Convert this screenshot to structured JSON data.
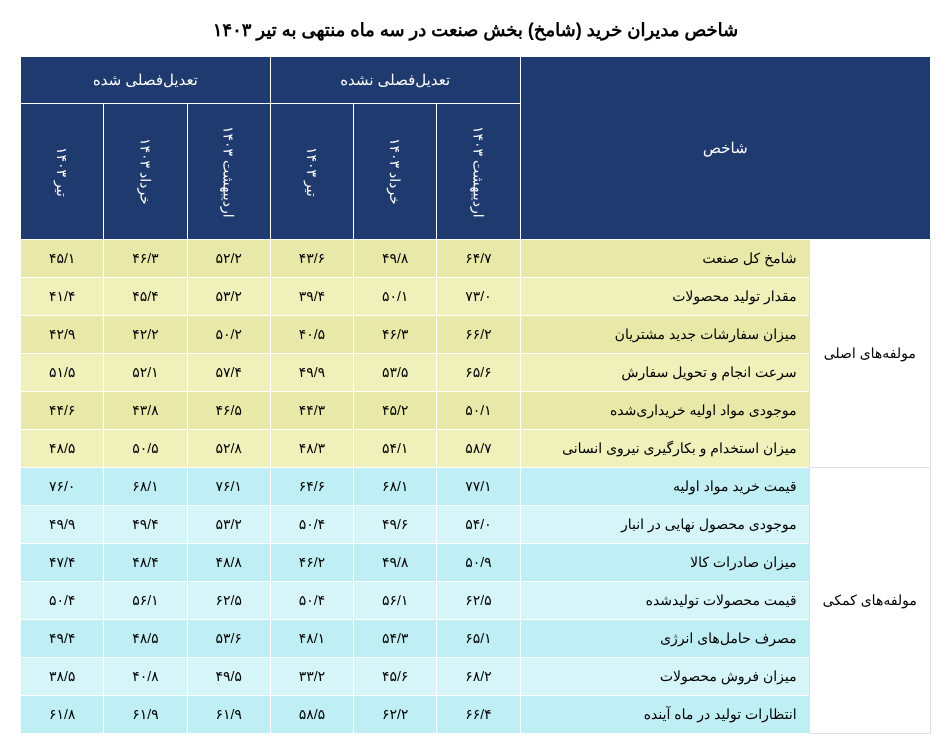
{
  "title": "شاخص مدیران خرید (شامخ) بخش صنعت در سه ماه منتهی به تیر ۱۴۰۳",
  "header": {
    "indicator_label": "شاخص",
    "group_unadjusted": "تعدیل‌فصلی نشده",
    "group_adjusted": "تعدیل‌فصلی شده",
    "months": {
      "m1": "اردیبهشت ۱۴۰۳",
      "m2": "خرداد ۱۴۰۳",
      "m3": "تیر ۱۴۰۳"
    }
  },
  "sections": {
    "main_label": "مولفه‌های اصلی",
    "aux_label": "مولفه‌های کمکی"
  },
  "rows": {
    "r0": {
      "name": "شامخ کل صنعت",
      "u1": "۶۴/۷",
      "u2": "۴۹/۸",
      "u3": "۴۳/۶",
      "a1": "۵۲/۲",
      "a2": "۴۶/۳",
      "a3": "۴۵/۱"
    },
    "r1": {
      "name": "مقدار تولید محصولات",
      "u1": "۷۳/۰",
      "u2": "۵۰/۱",
      "u3": "۳۹/۴",
      "a1": "۵۳/۲",
      "a2": "۴۵/۴",
      "a3": "۴۱/۴"
    },
    "r2": {
      "name": "میزان سفارشات جدید مشتریان",
      "u1": "۶۶/۲",
      "u2": "۴۶/۳",
      "u3": "۴۰/۵",
      "a1": "۵۰/۲",
      "a2": "۴۲/۲",
      "a3": "۴۲/۹"
    },
    "r3": {
      "name": "سرعت انجام و تحویل سفارش",
      "u1": "۶۵/۶",
      "u2": "۵۳/۵",
      "u3": "۴۹/۹",
      "a1": "۵۷/۴",
      "a2": "۵۲/۱",
      "a3": "۵۱/۵"
    },
    "r4": {
      "name": "موجودی مواد اولیه خریداری‌شده",
      "u1": "۵۰/۱",
      "u2": "۴۵/۲",
      "u3": "۴۴/۳",
      "a1": "۴۶/۵",
      "a2": "۴۳/۸",
      "a3": "۴۴/۶"
    },
    "r5": {
      "name": "میزان استخدام و بکارگیری نیروی انسانی",
      "u1": "۵۸/۷",
      "u2": "۵۴/۱",
      "u3": "۴۸/۳",
      "a1": "۵۲/۸",
      "a2": "۵۰/۵",
      "a3": "۴۸/۵"
    },
    "r6": {
      "name": "قیمت خرید مواد اولیه",
      "u1": "۷۷/۱",
      "u2": "۶۸/۱",
      "u3": "۶۴/۶",
      "a1": "۷۶/۱",
      "a2": "۶۸/۱",
      "a3": "۷۶/۰"
    },
    "r7": {
      "name": "موجودی محصول نهایی در انبار",
      "u1": "۵۴/۰",
      "u2": "۴۹/۶",
      "u3": "۵۰/۴",
      "a1": "۵۳/۲",
      "a2": "۴۹/۴",
      "a3": "۴۹/۹"
    },
    "r8": {
      "name": "میزان صادرات کالا",
      "u1": "۵۰/۹",
      "u2": "۴۹/۸",
      "u3": "۴۶/۲",
      "a1": "۴۸/۸",
      "a2": "۴۸/۴",
      "a3": "۴۷/۴"
    },
    "r9": {
      "name": "قیمت محصولات تولیدشده",
      "u1": "۶۲/۵",
      "u2": "۵۶/۱",
      "u3": "۵۰/۴",
      "a1": "۶۲/۵",
      "a2": "۵۶/۱",
      "a3": "۵۰/۴"
    },
    "r10": {
      "name": "مصرف حامل‌های انرژی",
      "u1": "۶۵/۱",
      "u2": "۵۴/۳",
      "u3": "۴۸/۱",
      "a1": "۵۳/۶",
      "a2": "۴۸/۵",
      "a3": "۴۹/۴"
    },
    "r11": {
      "name": "میزان فروش محصولات",
      "u1": "۶۸/۲",
      "u2": "۴۵/۶",
      "u3": "۳۳/۲",
      "a1": "۴۹/۵",
      "a2": "۴۰/۸",
      "a3": "۳۸/۵"
    },
    "r12": {
      "name": "انتظارات تولید در ماه آینده",
      "u1": "۶۶/۴",
      "u2": "۶۲/۲",
      "u3": "۵۸/۵",
      "a1": "۶۱/۹",
      "a2": "۶۱/۹",
      "a3": "۶۱/۸"
    }
  },
  "style": {
    "header_bg": "#1f3a6e",
    "header_fg": "#ffffff",
    "main_row_bg": "#e8e9a8",
    "main_row_alt_bg": "#eff0ba",
    "aux_row_bg": "#bfeff5",
    "aux_row_alt_bg": "#d5f5f9",
    "section_bg": "#ffffff",
    "border_color": "#ffffff",
    "title_fontsize": 18,
    "cell_fontsize": 14
  }
}
